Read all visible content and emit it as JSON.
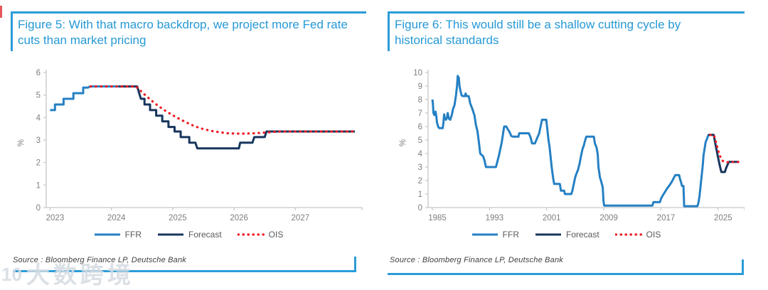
{
  "colors": {
    "accent_rule": "#2B9CD8",
    "title_text": "#2699D6",
    "ffr": "#2580C4",
    "forecast": "#17365D",
    "ois": "#EC1C24",
    "axis_line": "#C6C6C6",
    "tick_text": "#7F7F7F",
    "legend_text": "#595959",
    "source_text": "#3F3F3F"
  },
  "watermark": {
    "logo": "10",
    "text": "大数跨境"
  },
  "panels": [
    {
      "title": "Figure 5: With that macro backdrop, we project more Fed rate cuts than market pricing",
      "source": "Source : Bloomberg Finance LP, Deutsche Bank"
    },
    {
      "title": "Figure 6: This would still be a shallow cutting cycle by historical standards",
      "source": "Source : Bloomberg Finance LP, Deutsche Bank"
    }
  ],
  "chart_data": [
    {
      "type": "line",
      "title": "Fed funds rate: history, DB forecast and OIS market pricing (2023-2027)",
      "xlabel": "",
      "ylabel": "%",
      "xlim": [
        2022.96,
        2028.04
      ],
      "ylim": [
        0,
        6
      ],
      "yticks": [
        0,
        1,
        2,
        3,
        4,
        5,
        6
      ],
      "xticks": [
        2023,
        2024,
        2025,
        2026,
        2027
      ],
      "grid": false,
      "legend_position": "bottom",
      "series": [
        {
          "name": "FFR",
          "color": "#2580C4",
          "style": "solid",
          "width": 3,
          "points": [
            [
              2023.0,
              4.33
            ],
            [
              2023.08,
              4.33
            ],
            [
              2023.08,
              4.58
            ],
            [
              2023.22,
              4.58
            ],
            [
              2023.22,
              4.83
            ],
            [
              2023.38,
              4.83
            ],
            [
              2023.38,
              5.08
            ],
            [
              2023.54,
              5.08
            ],
            [
              2023.54,
              5.33
            ],
            [
              2023.62,
              5.33
            ],
            [
              2023.65,
              5.38
            ],
            [
              2024.12,
              5.38
            ]
          ]
        },
        {
          "name": "Forecast",
          "color": "#17365D",
          "style": "solid",
          "width": 3,
          "points": [
            [
              2024.12,
              5.38
            ],
            [
              2024.42,
              5.38
            ],
            [
              2024.48,
              4.83
            ],
            [
              2024.54,
              4.83
            ],
            [
              2024.54,
              4.58
            ],
            [
              2024.63,
              4.58
            ],
            [
              2024.63,
              4.33
            ],
            [
              2024.73,
              4.33
            ],
            [
              2024.73,
              4.08
            ],
            [
              2024.83,
              4.08
            ],
            [
              2024.83,
              3.83
            ],
            [
              2024.93,
              3.83
            ],
            [
              2024.93,
              3.58
            ],
            [
              2025.03,
              3.58
            ],
            [
              2025.03,
              3.38
            ],
            [
              2025.13,
              3.38
            ],
            [
              2025.13,
              3.13
            ],
            [
              2025.27,
              3.13
            ],
            [
              2025.27,
              2.88
            ],
            [
              2025.37,
              2.88
            ],
            [
              2025.4,
              2.63
            ],
            [
              2026.08,
              2.63
            ],
            [
              2026.1,
              2.88
            ],
            [
              2026.3,
              2.88
            ],
            [
              2026.33,
              3.13
            ],
            [
              2026.5,
              3.13
            ],
            [
              2026.53,
              3.38
            ],
            [
              2027.97,
              3.38
            ]
          ]
        },
        {
          "name": "OIS",
          "color": "#EC1C24",
          "style": "dotted",
          "width": 3.2,
          "points": [
            [
              2023.66,
              5.38
            ],
            [
              2024.4,
              5.38
            ],
            [
              2024.55,
              5.0
            ],
            [
              2024.7,
              4.65
            ],
            [
              2024.85,
              4.35
            ],
            [
              2025.0,
              4.1
            ],
            [
              2025.15,
              3.88
            ],
            [
              2025.3,
              3.68
            ],
            [
              2025.45,
              3.52
            ],
            [
              2025.6,
              3.42
            ],
            [
              2025.75,
              3.35
            ],
            [
              2025.9,
              3.3
            ],
            [
              2026.1,
              3.28
            ],
            [
              2026.35,
              3.3
            ],
            [
              2026.6,
              3.35
            ],
            [
              2026.75,
              3.38
            ],
            [
              2027.97,
              3.38
            ]
          ]
        }
      ]
    },
    {
      "type": "line",
      "title": "Fed funds rate since 1985 with DB forecast and OIS pricing",
      "xlabel": "",
      "ylabel": "%",
      "xlim": [
        1984.7,
        2028.3
      ],
      "ylim": [
        0,
        10
      ],
      "yticks": [
        0,
        1,
        2,
        3,
        4,
        5,
        6,
        7,
        8,
        9,
        10
      ],
      "xticks": [
        1985,
        1993,
        2001,
        2009,
        2017,
        2025
      ],
      "grid": false,
      "legend_position": "bottom",
      "series": [
        {
          "name": "FFR",
          "color": "#2580C4",
          "style": "solid",
          "width": 3,
          "points": [
            [
              1985.0,
              8.0
            ],
            [
              1985.08,
              7.7
            ],
            [
              1985.15,
              7.0
            ],
            [
              1985.3,
              6.85
            ],
            [
              1985.45,
              7.1
            ],
            [
              1985.55,
              6.8
            ],
            [
              1985.65,
              6.3
            ],
            [
              1985.8,
              6.0
            ],
            [
              1985.95,
              5.88
            ],
            [
              1986.45,
              5.88
            ],
            [
              1986.55,
              6.3
            ],
            [
              1986.65,
              6.9
            ],
            [
              1986.75,
              6.6
            ],
            [
              1986.9,
              6.5
            ],
            [
              1987.05,
              6.65
            ],
            [
              1987.15,
              7.0
            ],
            [
              1987.3,
              6.6
            ],
            [
              1987.5,
              6.5
            ],
            [
              1987.7,
              6.8
            ],
            [
              1987.9,
              7.3
            ],
            [
              1988.1,
              7.6
            ],
            [
              1988.3,
              8.3
            ],
            [
              1988.45,
              9.0
            ],
            [
              1988.55,
              9.75
            ],
            [
              1988.7,
              9.6
            ],
            [
              1988.8,
              9.0
            ],
            [
              1988.95,
              8.6
            ],
            [
              1989.1,
              8.3
            ],
            [
              1989.3,
              8.25
            ],
            [
              1989.55,
              8.25
            ],
            [
              1989.65,
              8.45
            ],
            [
              1989.8,
              8.25
            ],
            [
              1990.1,
              8.25
            ],
            [
              1990.3,
              7.7
            ],
            [
              1990.6,
              7.3
            ],
            [
              1990.9,
              6.8
            ],
            [
              1991.1,
              6.1
            ],
            [
              1991.3,
              5.7
            ],
            [
              1991.5,
              4.9
            ],
            [
              1991.7,
              4.0
            ],
            [
              1991.9,
              3.9
            ],
            [
              1992.1,
              3.8
            ],
            [
              1992.3,
              3.5
            ],
            [
              1992.5,
              3.0
            ],
            [
              1993.9,
              3.0
            ],
            [
              1994.1,
              3.4
            ],
            [
              1994.3,
              3.8
            ],
            [
              1994.5,
              4.3
            ],
            [
              1994.7,
              4.8
            ],
            [
              1994.9,
              5.5
            ],
            [
              1995.05,
              6.0
            ],
            [
              1995.35,
              6.0
            ],
            [
              1995.55,
              5.8
            ],
            [
              1995.8,
              5.6
            ],
            [
              1996.05,
              5.3
            ],
            [
              1996.3,
              5.25
            ],
            [
              1997.05,
              5.25
            ],
            [
              1997.15,
              5.5
            ],
            [
              1998.5,
              5.5
            ],
            [
              1998.75,
              5.2
            ],
            [
              1998.95,
              4.75
            ],
            [
              1999.35,
              4.75
            ],
            [
              1999.55,
              5.0
            ],
            [
              1999.75,
              5.25
            ],
            [
              1999.95,
              5.5
            ],
            [
              2000.15,
              6.0
            ],
            [
              2000.35,
              6.5
            ],
            [
              2000.95,
              6.5
            ],
            [
              2001.1,
              5.75
            ],
            [
              2001.25,
              5.0
            ],
            [
              2001.4,
              4.5
            ],
            [
              2001.55,
              3.75
            ],
            [
              2001.7,
              3.0
            ],
            [
              2001.9,
              2.2
            ],
            [
              2002.05,
              1.75
            ],
            [
              2002.85,
              1.75
            ],
            [
              2003.0,
              1.25
            ],
            [
              2003.45,
              1.25
            ],
            [
              2003.55,
              1.0
            ],
            [
              2004.45,
              1.0
            ],
            [
              2004.6,
              1.25
            ],
            [
              2004.8,
              1.75
            ],
            [
              2005.0,
              2.25
            ],
            [
              2005.2,
              2.55
            ],
            [
              2005.4,
              2.8
            ],
            [
              2005.6,
              3.25
            ],
            [
              2005.8,
              3.8
            ],
            [
              2006.0,
              4.3
            ],
            [
              2006.2,
              4.6
            ],
            [
              2006.4,
              5.0
            ],
            [
              2006.55,
              5.25
            ],
            [
              2007.6,
              5.25
            ],
            [
              2007.75,
              4.75
            ],
            [
              2007.95,
              4.5
            ],
            [
              2008.05,
              4.25
            ],
            [
              2008.15,
              3.9
            ],
            [
              2008.25,
              3.0
            ],
            [
              2008.45,
              2.25
            ],
            [
              2008.6,
              2.0
            ],
            [
              2008.85,
              1.5
            ],
            [
              2008.95,
              0.5
            ],
            [
              2009.05,
              0.15
            ],
            [
              2015.8,
              0.15
            ],
            [
              2015.95,
              0.4
            ],
            [
              2016.85,
              0.4
            ],
            [
              2017.0,
              0.65
            ],
            [
              2017.25,
              0.9
            ],
            [
              2017.55,
              1.15
            ],
            [
              2017.85,
              1.4
            ],
            [
              2018.2,
              1.65
            ],
            [
              2018.5,
              1.9
            ],
            [
              2018.8,
              2.2
            ],
            [
              2019.0,
              2.4
            ],
            [
              2019.55,
              2.4
            ],
            [
              2019.65,
              2.15
            ],
            [
              2019.8,
              1.9
            ],
            [
              2019.95,
              1.6
            ],
            [
              2020.15,
              1.6
            ],
            [
              2020.25,
              0.1
            ],
            [
              2022.1,
              0.1
            ],
            [
              2022.25,
              0.35
            ],
            [
              2022.4,
              0.85
            ],
            [
              2022.55,
              1.6
            ],
            [
              2022.7,
              2.35
            ],
            [
              2022.85,
              3.1
            ],
            [
              2022.95,
              3.85
            ],
            [
              2023.1,
              4.35
            ],
            [
              2023.25,
              4.85
            ],
            [
              2023.45,
              5.1
            ],
            [
              2023.6,
              5.33
            ]
          ]
        },
        {
          "name": "Forecast",
          "color": "#17365D",
          "style": "solid",
          "width": 3,
          "points": [
            [
              2023.6,
              5.33
            ],
            [
              2023.7,
              5.38
            ],
            [
              2024.4,
              5.38
            ],
            [
              2024.55,
              4.9
            ],
            [
              2024.7,
              4.5
            ],
            [
              2024.85,
              4.1
            ],
            [
              2025.0,
              3.7
            ],
            [
              2025.15,
              3.3
            ],
            [
              2025.3,
              2.95
            ],
            [
              2025.45,
              2.63
            ],
            [
              2025.95,
              2.63
            ],
            [
              2026.1,
              2.9
            ],
            [
              2026.3,
              3.15
            ],
            [
              2026.5,
              3.38
            ],
            [
              2027.9,
              3.38
            ]
          ]
        },
        {
          "name": "OIS",
          "color": "#EC1C24",
          "style": "dotted",
          "width": 3.2,
          "points": [
            [
              2023.9,
              5.38
            ],
            [
              2024.4,
              5.38
            ],
            [
              2024.6,
              5.05
            ],
            [
              2024.8,
              4.65
            ],
            [
              2025.0,
              4.25
            ],
            [
              2025.2,
              3.9
            ],
            [
              2025.4,
              3.65
            ],
            [
              2025.6,
              3.48
            ],
            [
              2025.8,
              3.4
            ],
            [
              2026.0,
              3.36
            ],
            [
              2026.3,
              3.35
            ],
            [
              2026.6,
              3.38
            ],
            [
              2027.9,
              3.38
            ]
          ]
        }
      ]
    }
  ]
}
